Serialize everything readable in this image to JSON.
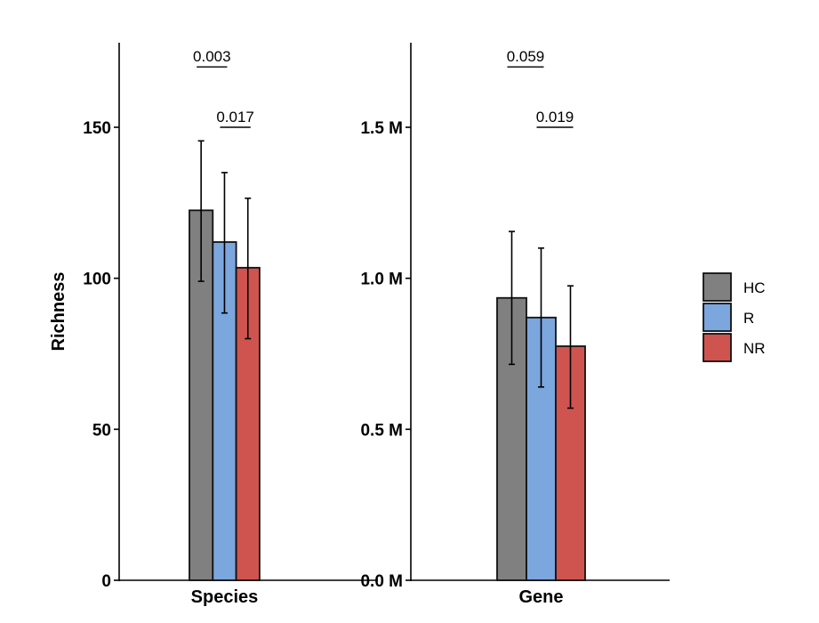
{
  "chart_data": {
    "type": "bar",
    "ylabel": "Richness",
    "legend": {
      "placement": "right",
      "entries": [
        {
          "name": "HC",
          "color": "#808080"
        },
        {
          "name": "R",
          "color": "#7BA6DE"
        },
        {
          "name": "NR",
          "color": "#CF5450"
        }
      ]
    },
    "panels": [
      {
        "category": "Species",
        "ylim": [
          0,
          178
        ],
        "ticks": [
          {
            "value": 0,
            "label": "0"
          },
          {
            "value": 50,
            "label": "50"
          },
          {
            "value": 100,
            "label": "100"
          },
          {
            "value": 150,
            "label": "150"
          }
        ],
        "series": [
          {
            "name": "HC",
            "value": 122.5,
            "err_low": 99,
            "err_high": 145.5
          },
          {
            "name": "R",
            "value": 112,
            "err_low": 88.5,
            "err_high": 135
          },
          {
            "name": "NR",
            "value": 103.5,
            "err_low": 80,
            "err_high": 126.5
          }
        ],
        "comparisons": [
          {
            "label": "0.003",
            "from": "HC",
            "to": "R",
            "y": 170
          },
          {
            "label": "0.017",
            "from": "R",
            "to": "NR",
            "y": 150
          }
        ]
      },
      {
        "category": "Gene",
        "ylim": [
          0,
          1780000
        ],
        "ticks": [
          {
            "value": 0,
            "label": "0.0 M"
          },
          {
            "value": 500000,
            "label": "0.5 M"
          },
          {
            "value": 1000000,
            "label": "1.0 M"
          },
          {
            "value": 1500000,
            "label": "1.5 M"
          }
        ],
        "series": [
          {
            "name": "HC",
            "value": 935000,
            "err_low": 715000,
            "err_high": 1155000
          },
          {
            "name": "R",
            "value": 870000,
            "err_low": 640000,
            "err_high": 1100000
          },
          {
            "name": "NR",
            "value": 775000,
            "err_low": 570000,
            "err_high": 975000
          }
        ],
        "comparisons": [
          {
            "label": "0.059",
            "from": "HC",
            "to": "R",
            "y": 1700000
          },
          {
            "label": "0.019",
            "from": "R",
            "to": "NR",
            "y": 1500000
          }
        ]
      }
    ]
  }
}
